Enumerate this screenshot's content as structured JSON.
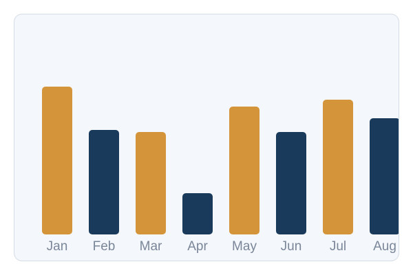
{
  "chart_data": {
    "type": "bar",
    "categories": [
      "Jan",
      "Feb",
      "Mar",
      "Apr",
      "May",
      "Jun",
      "Jul",
      "Aug"
    ],
    "values": [
      215,
      152,
      149,
      60,
      186,
      149,
      196,
      169
    ],
    "ylim": [
      0,
      300
    ],
    "grid": false,
    "bar_colors": [
      "#d4943a",
      "#1a3a5c",
      "#d4943a",
      "#1a3a5c",
      "#d4943a",
      "#1a3a5c",
      "#d4943a",
      "#1a3a5c"
    ]
  },
  "colors": {
    "card_background": "#f4f7fb",
    "card_border": "#d5dde7",
    "tick_label": "#7a8699"
  }
}
